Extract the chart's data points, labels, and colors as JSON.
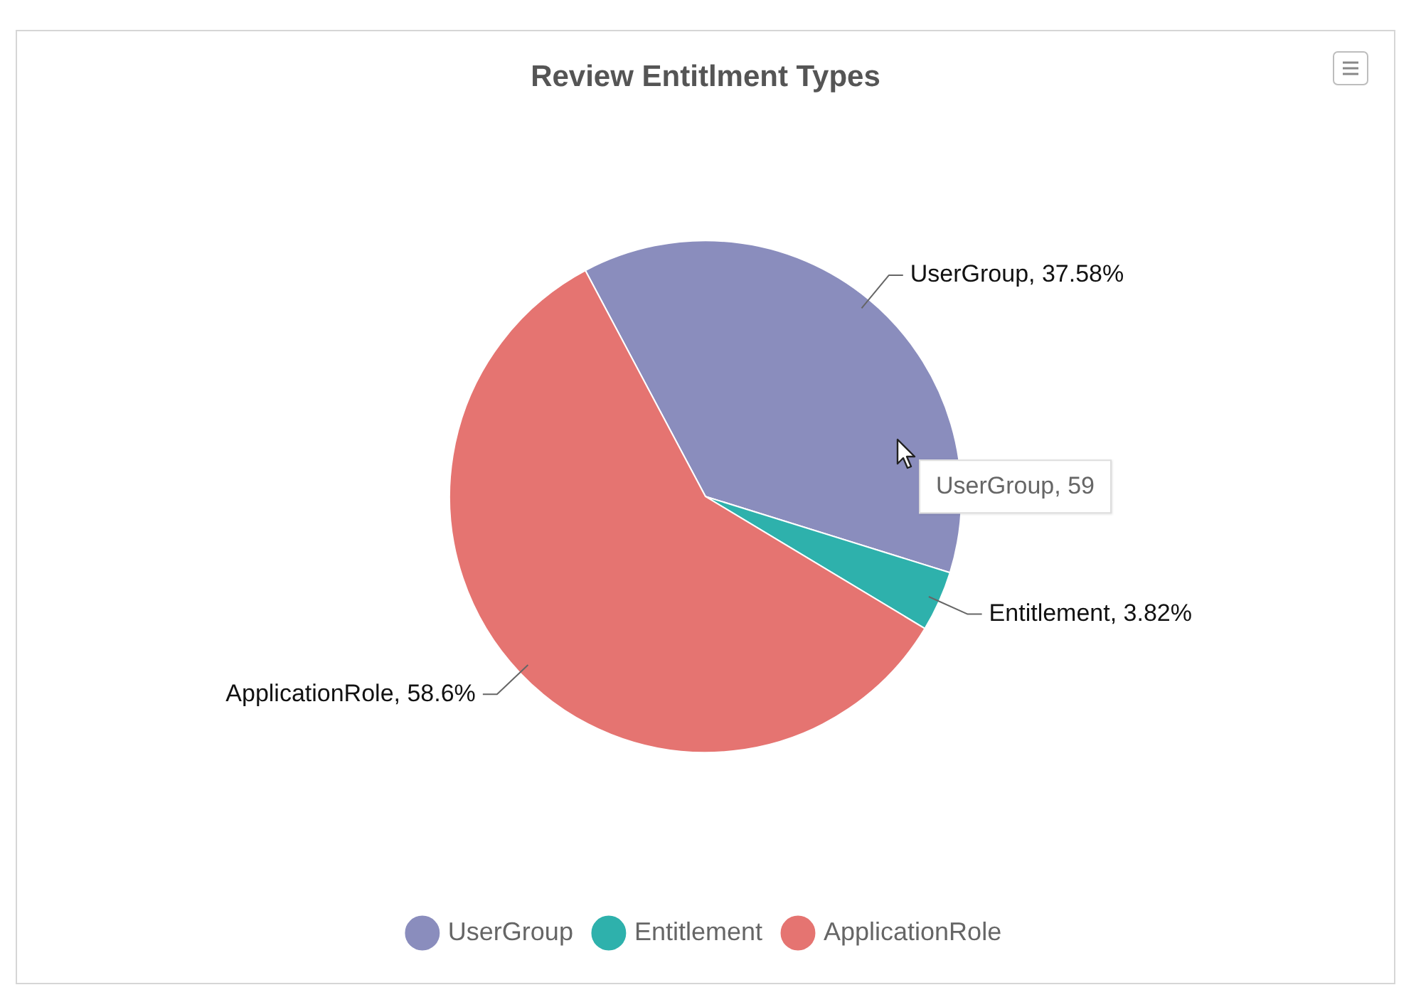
{
  "chart_data": {
    "type": "pie",
    "title": "Review Entitlment Types",
    "categories": [
      "UserGroup",
      "Entitlement",
      "ApplicationRole"
    ],
    "values": [
      37.58,
      3.82,
      58.6
    ],
    "colors": [
      "#8a8dbd",
      "#2eb1ac",
      "#e57471"
    ],
    "value_labels": [
      "UserGroup, 37.58%",
      "Entitlement, 3.82%",
      "ApplicationRole, 58.6%"
    ],
    "legend": "bottom",
    "annotations": [
      "UserGroup, 59"
    ]
  }
}
